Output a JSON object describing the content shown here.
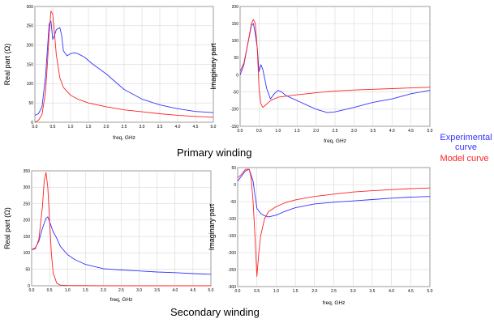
{
  "captions": {
    "primary": "Primary winding",
    "secondary": "Secondary winding"
  },
  "legend": {
    "experimental_line1": "Experimental",
    "experimental_line2": "curve",
    "model": "Model curve",
    "experimental_color": "#3333ff",
    "model_color": "#ff2222"
  },
  "chart_data": [
    {
      "type": "line",
      "id": "primary_real",
      "xlabel": "freq, GHz",
      "ylabel": "Real part (Ω)",
      "xlim": [
        0,
        5
      ],
      "ylim": [
        0,
        300
      ],
      "xticks": [
        0.0,
        0.5,
        1.0,
        1.5,
        2.0,
        2.5,
        3.0,
        3.5,
        4.0,
        4.5,
        5.0
      ],
      "yticks": [
        0,
        50,
        100,
        150,
        200,
        250,
        300
      ],
      "grid": true,
      "series": [
        {
          "name": "Experimental curve",
          "color": "#3333ff",
          "x": [
            0,
            0.1,
            0.2,
            0.3,
            0.4,
            0.45,
            0.5,
            0.55,
            0.6,
            0.7,
            0.75,
            0.8,
            0.9,
            1.0,
            1.1,
            1.2,
            1.4,
            1.6,
            2.0,
            2.5,
            3.0,
            3.5,
            4.0,
            4.5,
            5.0
          ],
          "y": [
            18,
            22,
            40,
            120,
            255,
            262,
            215,
            225,
            240,
            245,
            225,
            185,
            172,
            178,
            180,
            178,
            168,
            152,
            125,
            85,
            60,
            45,
            35,
            28,
            25
          ]
        },
        {
          "name": "Model curve",
          "color": "#ff2222",
          "x": [
            0,
            0.1,
            0.2,
            0.3,
            0.35,
            0.4,
            0.45,
            0.5,
            0.55,
            0.6,
            0.7,
            0.8,
            1.0,
            1.2,
            1.5,
            2.0,
            2.5,
            3.0,
            3.5,
            4.0,
            4.5,
            5.0
          ],
          "y": [
            0,
            5,
            20,
            80,
            150,
            230,
            288,
            280,
            230,
            175,
            115,
            90,
            70,
            60,
            50,
            40,
            32,
            27,
            22,
            18,
            15,
            13
          ]
        }
      ]
    },
    {
      "type": "line",
      "id": "primary_imag",
      "xlabel": "freq, GHz",
      "ylabel": "Imaginary part",
      "xlim": [
        0,
        5
      ],
      "ylim": [
        -150,
        200
      ],
      "xticks": [
        0.0,
        0.5,
        1.0,
        1.5,
        2.0,
        2.5,
        3.0,
        3.5,
        4.0,
        4.5,
        5.0
      ],
      "yticks": [
        -150,
        -100,
        -50,
        0,
        50,
        100,
        150,
        200
      ],
      "grid": true,
      "series": [
        {
          "name": "Experimental curve",
          "color": "#3333ff",
          "x": [
            0,
            0.1,
            0.2,
            0.3,
            0.35,
            0.4,
            0.45,
            0.5,
            0.55,
            0.6,
            0.7,
            0.8,
            0.9,
            1.0,
            1.1,
            1.2,
            1.4,
            1.6,
            2.0,
            2.3,
            2.5,
            3.0,
            3.5,
            4.0,
            4.5,
            5.0
          ],
          "y": [
            0,
            30,
            90,
            145,
            150,
            120,
            80,
            10,
            30,
            15,
            -40,
            -70,
            -55,
            -45,
            -50,
            -60,
            -70,
            -80,
            -100,
            -110,
            -108,
            -95,
            -80,
            -70,
            -55,
            -45
          ]
        },
        {
          "name": "Model curve",
          "color": "#ff2222",
          "x": [
            0,
            0.1,
            0.2,
            0.3,
            0.35,
            0.4,
            0.45,
            0.5,
            0.55,
            0.6,
            0.7,
            0.8,
            1.0,
            1.5,
            2.0,
            2.5,
            3.0,
            3.5,
            4.0,
            4.5,
            5.0
          ],
          "y": [
            10,
            35,
            90,
            150,
            162,
            150,
            80,
            -40,
            -85,
            -95,
            -85,
            -75,
            -65,
            -58,
            -52,
            -47,
            -44,
            -42,
            -40,
            -38,
            -36
          ]
        }
      ]
    },
    {
      "type": "line",
      "id": "secondary_real",
      "xlabel": "freq, GHz",
      "ylabel": "Real part (Ω)",
      "xlim": [
        0,
        5
      ],
      "ylim": [
        0,
        350
      ],
      "xticks": [
        0.0,
        0.5,
        1.0,
        1.5,
        2.0,
        2.5,
        3.0,
        3.5,
        4.0,
        4.5,
        5.0
      ],
      "yticks": [
        0,
        50,
        100,
        150,
        200,
        250,
        300,
        350
      ],
      "grid": true,
      "series": [
        {
          "name": "Experimental curve",
          "color": "#3333ff",
          "x": [
            0,
            0.1,
            0.2,
            0.3,
            0.4,
            0.45,
            0.5,
            0.6,
            0.7,
            0.8,
            1.0,
            1.2,
            1.5,
            2.0,
            2.5,
            3.0,
            3.5,
            4.0,
            4.5,
            5.0
          ],
          "y": [
            110,
            115,
            135,
            175,
            205,
            210,
            195,
            165,
            145,
            120,
            95,
            80,
            65,
            52,
            48,
            45,
            42,
            40,
            37,
            35
          ]
        },
        {
          "name": "Model curve",
          "color": "#ff2222",
          "x": [
            0,
            0.1,
            0.2,
            0.3,
            0.35,
            0.4,
            0.45,
            0.5,
            0.55,
            0.6,
            0.7,
            0.8,
            1.0,
            2.0,
            3.0,
            4.0,
            5.0
          ],
          "y": [
            110,
            112,
            140,
            240,
            320,
            345,
            300,
            200,
            100,
            40,
            8,
            2,
            1,
            0,
            0,
            0,
            0
          ]
        }
      ]
    },
    {
      "type": "line",
      "id": "secondary_imag",
      "xlabel": "freq, GHz",
      "ylabel": "Imaginary part",
      "xlim": [
        0,
        5
      ],
      "ylim": [
        -300,
        50
      ],
      "xticks": [
        0.0,
        0.5,
        1.0,
        1.5,
        2.0,
        2.5,
        3.0,
        3.5,
        4.0,
        4.5,
        5.0
      ],
      "yticks": [
        -300,
        -250,
        -200,
        -150,
        -100,
        -50,
        0,
        50
      ],
      "grid": true,
      "series": [
        {
          "name": "Experimental curve",
          "color": "#3333ff",
          "x": [
            0,
            0.1,
            0.2,
            0.3,
            0.4,
            0.45,
            0.5,
            0.6,
            0.7,
            0.8,
            1.0,
            1.2,
            1.5,
            2.0,
            2.5,
            3.0,
            3.5,
            4.0,
            4.5,
            5.0
          ],
          "y": [
            10,
            25,
            40,
            45,
            10,
            -30,
            -70,
            -85,
            -92,
            -95,
            -90,
            -80,
            -68,
            -57,
            -52,
            -48,
            -44,
            -40,
            -37,
            -35
          ]
        },
        {
          "name": "Model curve",
          "color": "#ff2222",
          "x": [
            0,
            0.1,
            0.2,
            0.3,
            0.35,
            0.4,
            0.45,
            0.5,
            0.55,
            0.6,
            0.7,
            0.8,
            1.0,
            1.2,
            1.5,
            2.0,
            2.5,
            3.0,
            3.5,
            4.0,
            4.5,
            5.0
          ],
          "y": [
            20,
            30,
            45,
            45,
            20,
            -50,
            -150,
            -270,
            -200,
            -150,
            -100,
            -80,
            -65,
            -55,
            -45,
            -35,
            -28,
            -22,
            -18,
            -15,
            -12,
            -10
          ]
        }
      ]
    }
  ]
}
